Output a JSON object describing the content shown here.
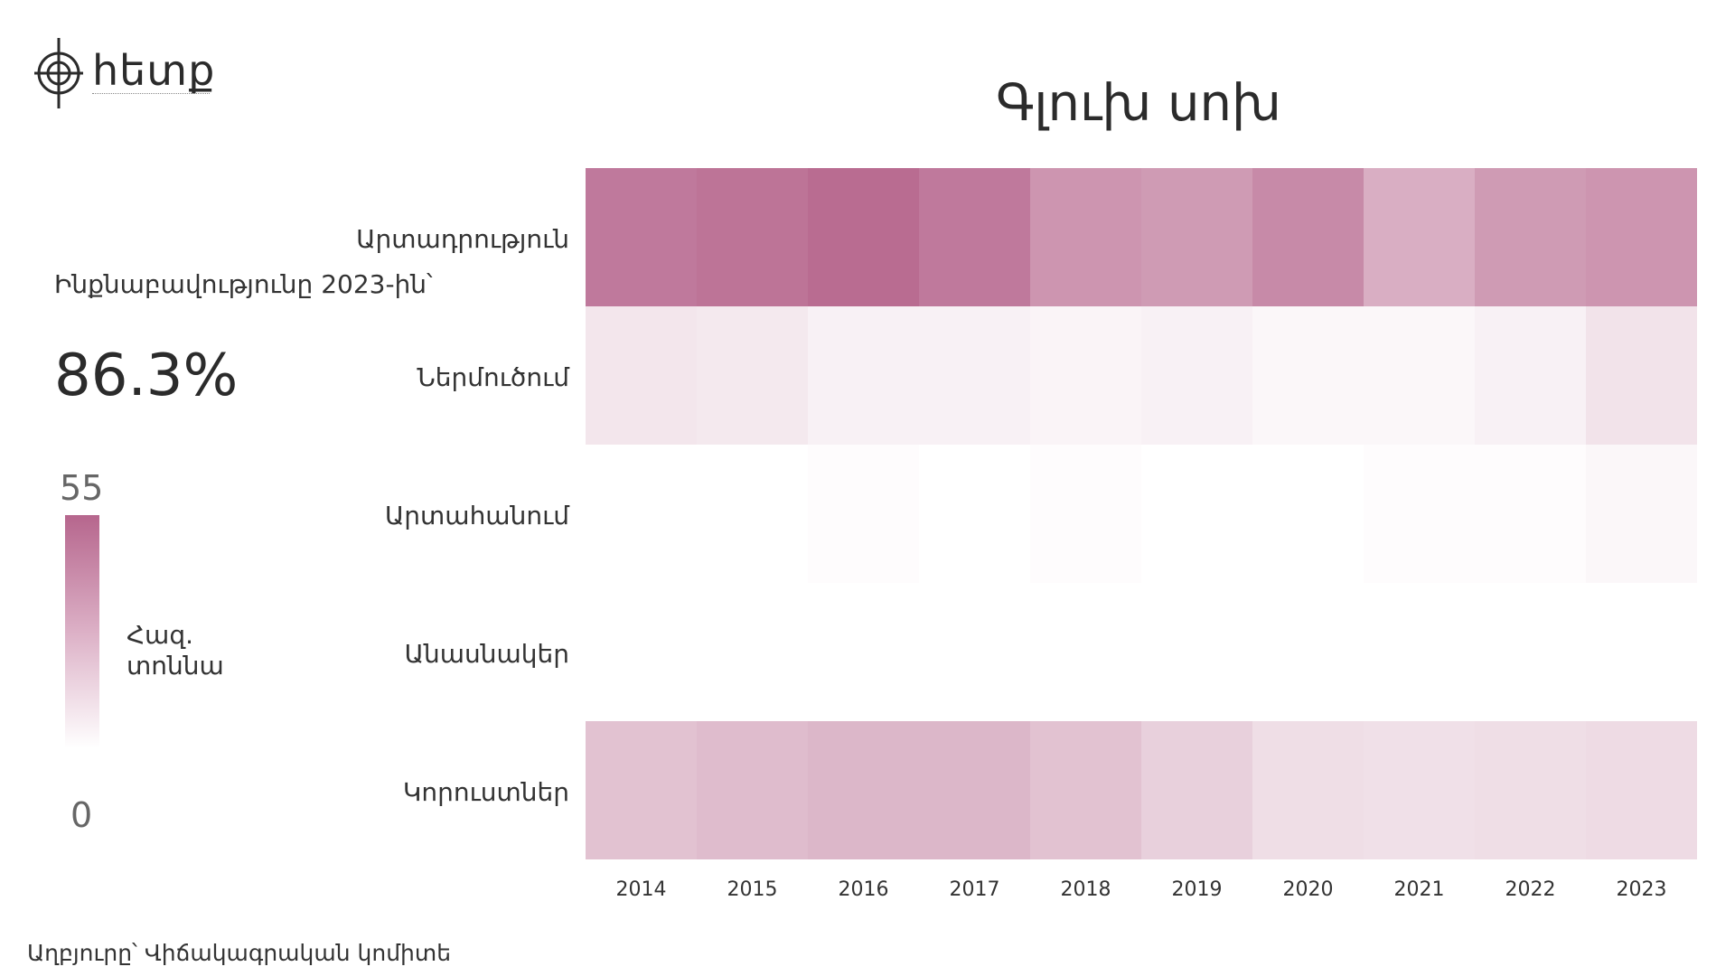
{
  "brand": {
    "name": "հետք"
  },
  "kpi": {
    "label": "Ինքնաբավությունը 2023-ին՝",
    "value": "86.3%"
  },
  "legend": {
    "max_label": "55",
    "min_label": "0",
    "unit": "Հազ. տոննա",
    "color_max": "#b6668d",
    "color_min": "#ffffff"
  },
  "source": "Աղբյուրը՝ Վիճակագրական կոմիտե",
  "chart_data": {
    "type": "heatmap",
    "title": "Գլուխ սոխ",
    "rows": [
      "Արտադրություն",
      "Ներմուծում",
      "Արտահանում",
      "Անասնակեր",
      "Կորուստներ"
    ],
    "columns": [
      "2014",
      "2015",
      "2016",
      "2017",
      "2018",
      "2019",
      "2020",
      "2021",
      "2022",
      "2023"
    ],
    "values": [
      [
        48,
        50,
        53,
        48,
        38,
        36,
        42,
        29,
        36,
        38
      ],
      [
        9,
        8,
        5,
        5,
        4,
        5,
        3,
        3,
        5,
        10
      ],
      [
        0,
        0,
        1,
        0,
        1,
        0,
        0,
        1,
        1,
        3
      ],
      [
        0,
        0,
        0,
        0,
        0,
        0,
        0,
        0,
        0,
        0
      ],
      [
        22,
        24,
        26,
        26,
        22,
        17,
        12,
        11,
        12,
        13
      ]
    ],
    "scale": {
      "min": 0,
      "max": 55
    },
    "colors": {
      "high": "#b6668d",
      "low": "#ffffff"
    }
  }
}
